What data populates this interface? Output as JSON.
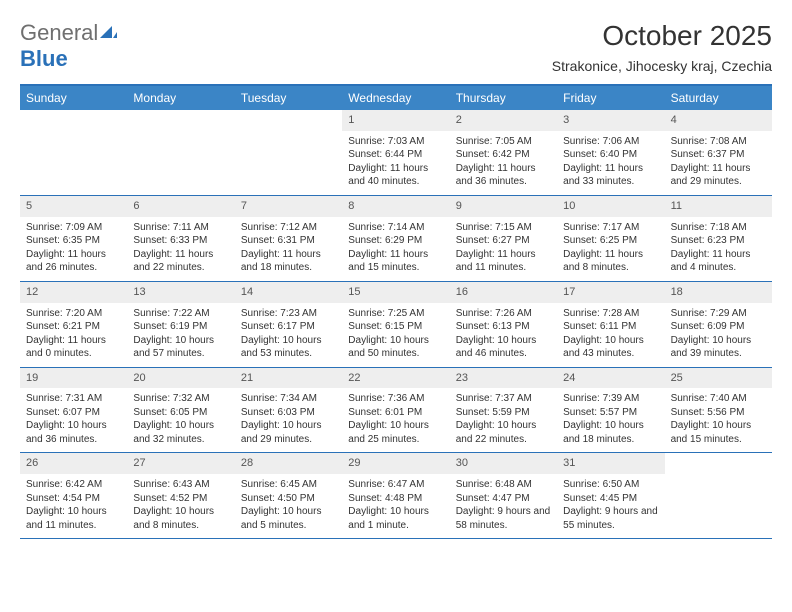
{
  "brand": {
    "part1": "General",
    "part2": "Blue"
  },
  "title": "October 2025",
  "location": "Strakonice, Jihocesky kraj, Czechia",
  "colors": {
    "header_bg": "#3b85c6",
    "header_text": "#ffffff",
    "rule": "#2a71b8",
    "daynum_bg": "#eeeeee",
    "body_text": "#333333",
    "logo_gray": "#6f6f6f",
    "logo_blue": "#2a71b8"
  },
  "day_names": [
    "Sunday",
    "Monday",
    "Tuesday",
    "Wednesday",
    "Thursday",
    "Friday",
    "Saturday"
  ],
  "weeks": [
    [
      {
        "n": "",
        "sr": "",
        "ss": "",
        "dl": "",
        "empty": true
      },
      {
        "n": "",
        "sr": "",
        "ss": "",
        "dl": "",
        "empty": true
      },
      {
        "n": "",
        "sr": "",
        "ss": "",
        "dl": "",
        "empty": true
      },
      {
        "n": "1",
        "sr": "Sunrise: 7:03 AM",
        "ss": "Sunset: 6:44 PM",
        "dl": "Daylight: 11 hours and 40 minutes."
      },
      {
        "n": "2",
        "sr": "Sunrise: 7:05 AM",
        "ss": "Sunset: 6:42 PM",
        "dl": "Daylight: 11 hours and 36 minutes."
      },
      {
        "n": "3",
        "sr": "Sunrise: 7:06 AM",
        "ss": "Sunset: 6:40 PM",
        "dl": "Daylight: 11 hours and 33 minutes."
      },
      {
        "n": "4",
        "sr": "Sunrise: 7:08 AM",
        "ss": "Sunset: 6:37 PM",
        "dl": "Daylight: 11 hours and 29 minutes."
      }
    ],
    [
      {
        "n": "5",
        "sr": "Sunrise: 7:09 AM",
        "ss": "Sunset: 6:35 PM",
        "dl": "Daylight: 11 hours and 26 minutes."
      },
      {
        "n": "6",
        "sr": "Sunrise: 7:11 AM",
        "ss": "Sunset: 6:33 PM",
        "dl": "Daylight: 11 hours and 22 minutes."
      },
      {
        "n": "7",
        "sr": "Sunrise: 7:12 AM",
        "ss": "Sunset: 6:31 PM",
        "dl": "Daylight: 11 hours and 18 minutes."
      },
      {
        "n": "8",
        "sr": "Sunrise: 7:14 AM",
        "ss": "Sunset: 6:29 PM",
        "dl": "Daylight: 11 hours and 15 minutes."
      },
      {
        "n": "9",
        "sr": "Sunrise: 7:15 AM",
        "ss": "Sunset: 6:27 PM",
        "dl": "Daylight: 11 hours and 11 minutes."
      },
      {
        "n": "10",
        "sr": "Sunrise: 7:17 AM",
        "ss": "Sunset: 6:25 PM",
        "dl": "Daylight: 11 hours and 8 minutes."
      },
      {
        "n": "11",
        "sr": "Sunrise: 7:18 AM",
        "ss": "Sunset: 6:23 PM",
        "dl": "Daylight: 11 hours and 4 minutes."
      }
    ],
    [
      {
        "n": "12",
        "sr": "Sunrise: 7:20 AM",
        "ss": "Sunset: 6:21 PM",
        "dl": "Daylight: 11 hours and 0 minutes."
      },
      {
        "n": "13",
        "sr": "Sunrise: 7:22 AM",
        "ss": "Sunset: 6:19 PM",
        "dl": "Daylight: 10 hours and 57 minutes."
      },
      {
        "n": "14",
        "sr": "Sunrise: 7:23 AM",
        "ss": "Sunset: 6:17 PM",
        "dl": "Daylight: 10 hours and 53 minutes."
      },
      {
        "n": "15",
        "sr": "Sunrise: 7:25 AM",
        "ss": "Sunset: 6:15 PM",
        "dl": "Daylight: 10 hours and 50 minutes."
      },
      {
        "n": "16",
        "sr": "Sunrise: 7:26 AM",
        "ss": "Sunset: 6:13 PM",
        "dl": "Daylight: 10 hours and 46 minutes."
      },
      {
        "n": "17",
        "sr": "Sunrise: 7:28 AM",
        "ss": "Sunset: 6:11 PM",
        "dl": "Daylight: 10 hours and 43 minutes."
      },
      {
        "n": "18",
        "sr": "Sunrise: 7:29 AM",
        "ss": "Sunset: 6:09 PM",
        "dl": "Daylight: 10 hours and 39 minutes."
      }
    ],
    [
      {
        "n": "19",
        "sr": "Sunrise: 7:31 AM",
        "ss": "Sunset: 6:07 PM",
        "dl": "Daylight: 10 hours and 36 minutes."
      },
      {
        "n": "20",
        "sr": "Sunrise: 7:32 AM",
        "ss": "Sunset: 6:05 PM",
        "dl": "Daylight: 10 hours and 32 minutes."
      },
      {
        "n": "21",
        "sr": "Sunrise: 7:34 AM",
        "ss": "Sunset: 6:03 PM",
        "dl": "Daylight: 10 hours and 29 minutes."
      },
      {
        "n": "22",
        "sr": "Sunrise: 7:36 AM",
        "ss": "Sunset: 6:01 PM",
        "dl": "Daylight: 10 hours and 25 minutes."
      },
      {
        "n": "23",
        "sr": "Sunrise: 7:37 AM",
        "ss": "Sunset: 5:59 PM",
        "dl": "Daylight: 10 hours and 22 minutes."
      },
      {
        "n": "24",
        "sr": "Sunrise: 7:39 AM",
        "ss": "Sunset: 5:57 PM",
        "dl": "Daylight: 10 hours and 18 minutes."
      },
      {
        "n": "25",
        "sr": "Sunrise: 7:40 AM",
        "ss": "Sunset: 5:56 PM",
        "dl": "Daylight: 10 hours and 15 minutes."
      }
    ],
    [
      {
        "n": "26",
        "sr": "Sunrise: 6:42 AM",
        "ss": "Sunset: 4:54 PM",
        "dl": "Daylight: 10 hours and 11 minutes."
      },
      {
        "n": "27",
        "sr": "Sunrise: 6:43 AM",
        "ss": "Sunset: 4:52 PM",
        "dl": "Daylight: 10 hours and 8 minutes."
      },
      {
        "n": "28",
        "sr": "Sunrise: 6:45 AM",
        "ss": "Sunset: 4:50 PM",
        "dl": "Daylight: 10 hours and 5 minutes."
      },
      {
        "n": "29",
        "sr": "Sunrise: 6:47 AM",
        "ss": "Sunset: 4:48 PM",
        "dl": "Daylight: 10 hours and 1 minute."
      },
      {
        "n": "30",
        "sr": "Sunrise: 6:48 AM",
        "ss": "Sunset: 4:47 PM",
        "dl": "Daylight: 9 hours and 58 minutes."
      },
      {
        "n": "31",
        "sr": "Sunrise: 6:50 AM",
        "ss": "Sunset: 4:45 PM",
        "dl": "Daylight: 9 hours and 55 minutes."
      },
      {
        "n": "",
        "sr": "",
        "ss": "",
        "dl": "",
        "empty": true
      }
    ]
  ]
}
